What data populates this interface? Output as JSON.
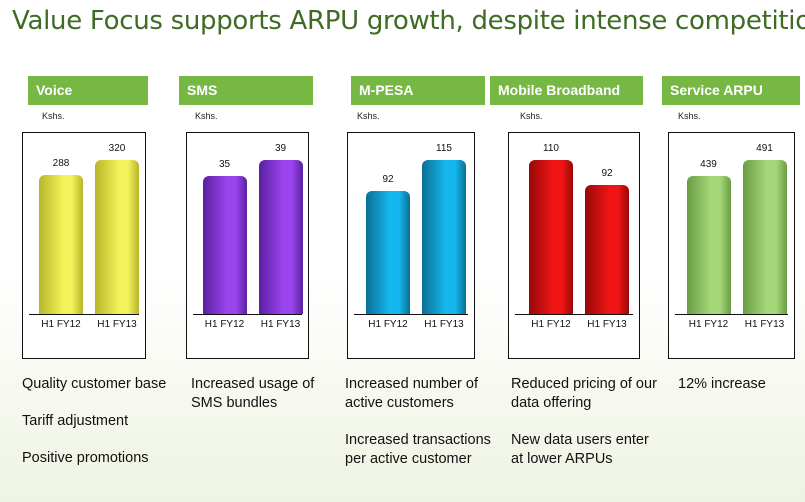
{
  "title": "Value Focus supports ARPU growth, despite intense competition",
  "chart_data": [
    {
      "type": "bar",
      "title": "Voice",
      "unit": "Kshs.",
      "categories": [
        "H1 FY12",
        "H1 FY13"
      ],
      "values": [
        288,
        320
      ],
      "color": "#f4f25a",
      "dark": "#b8b52a",
      "notes": [
        "Quality customer base",
        "Tariff adjustment",
        "Positive promotions"
      ]
    },
    {
      "type": "bar",
      "title": "SMS",
      "unit": "Kshs.",
      "categories": [
        "H1 FY12",
        "H1 FY13"
      ],
      "values": [
        35,
        39
      ],
      "color": "#9b45ee",
      "dark": "#5a1fa0",
      "notes": [
        "Increased usage of SMS bundles"
      ]
    },
    {
      "type": "bar",
      "title": "M-PESA",
      "unit": "Kshs.",
      "categories": [
        "H1 FY12",
        "H1 FY13"
      ],
      "values": [
        92,
        115
      ],
      "color": "#15b8ee",
      "dark": "#0a6f96",
      "notes": [
        "Increased number of active customers",
        "Increased transactions per active customer"
      ]
    },
    {
      "type": "bar",
      "title": "Mobile Broadband",
      "unit": "Kshs.",
      "categories": [
        "H1 FY12",
        "H1 FY13"
      ],
      "values": [
        110,
        92
      ],
      "color": "#f01414",
      "dark": "#980808",
      "notes": [
        "Reduced pricing of our data offering",
        "New data users enter at lower ARPUs"
      ]
    },
    {
      "type": "bar",
      "title": "Service ARPU",
      "unit": "Kshs.",
      "categories": [
        "H1 FY12",
        "H1 FY13"
      ],
      "values": [
        439,
        491
      ],
      "color": "#a6d87a",
      "dark": "#6a9c44",
      "notes": [
        "12% increase"
      ]
    }
  ]
}
